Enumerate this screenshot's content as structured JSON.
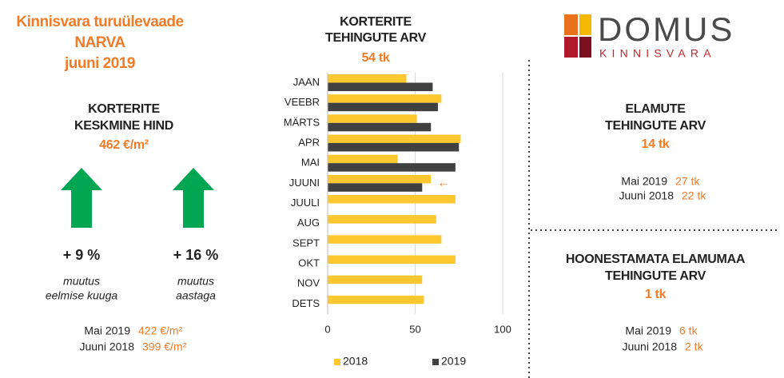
{
  "header": {
    "title_lines": [
      "Kinnisvara turuülevaade",
      "NARVA",
      "juuni 2019"
    ]
  },
  "apartment_price": {
    "title_lines": [
      "KORTERITE",
      "KESKMINE HIND"
    ],
    "value": "462 €/m²",
    "changes": [
      {
        "value": "+ 9 %",
        "label_lines": [
          "muutus",
          "eelmise kuuga"
        ]
      },
      {
        "value": "+ 16 %",
        "label_lines": [
          "muutus",
          "aastaga"
        ]
      }
    ],
    "comparisons": [
      {
        "label": "Mai 2019",
        "value": "422 €/m²"
      },
      {
        "label": "Juuni 2018",
        "value": "399 €/m²"
      }
    ]
  },
  "chart_data": {
    "type": "bar",
    "orientation": "horizontal",
    "title_lines": [
      "KORTERITE",
      "TEHINGUTE ARV"
    ],
    "subtitle": "54 tk",
    "categories": [
      "JAAN",
      "VEEBR",
      "MÄRTS",
      "APR",
      "MAI",
      "JUUNI",
      "JUULI",
      "AUG",
      "SEPT",
      "OKT",
      "NOV",
      "DETS"
    ],
    "series": [
      {
        "name": "2018",
        "color": "#fdc82f",
        "values": [
          45,
          65,
          51,
          76,
          40,
          59,
          73,
          62,
          65,
          73,
          54,
          55
        ]
      },
      {
        "name": "2019",
        "color": "#404040",
        "values": [
          60,
          63,
          59,
          75,
          73,
          54,
          null,
          null,
          null,
          null,
          null,
          null
        ]
      }
    ],
    "xlim": [
      0,
      100
    ],
    "xticks": [
      0,
      50,
      100
    ],
    "grid": true,
    "legend": "bottom",
    "annotation": "←"
  },
  "logo": {
    "name": "DOMUS",
    "subtitle": "KINNISVARA"
  },
  "houses": {
    "title_lines": [
      "ELAMUTE",
      "TEHINGUTE ARV"
    ],
    "value": "14 tk",
    "comparisons": [
      {
        "label": "Mai 2019",
        "value": "27 tk"
      },
      {
        "label": "Juuni 2018",
        "value": "22 tk"
      }
    ]
  },
  "land": {
    "title_lines": [
      "HOONESTAMATA ELAMUMAA",
      "TEHINGUTE ARV"
    ],
    "value": "1 tk",
    "comparisons": [
      {
        "label": "Mai 2019",
        "value": "6 tk"
      },
      {
        "label": "Juuni 2018",
        "value": "2 tk"
      }
    ]
  }
}
